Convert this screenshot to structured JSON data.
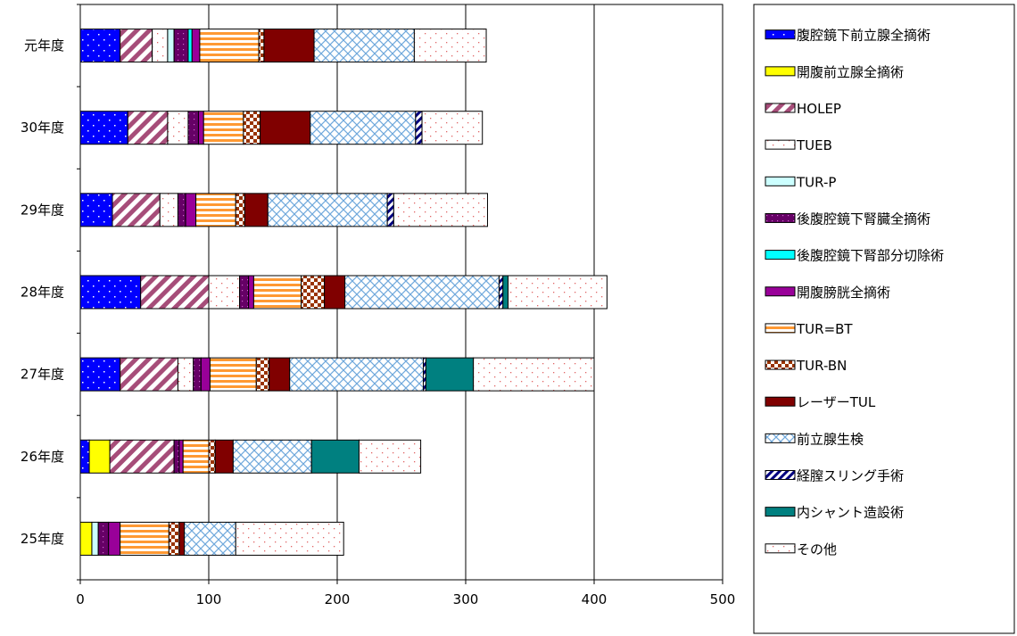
{
  "chart_data": {
    "type": "bar",
    "orientation": "horizontal",
    "stacked": true,
    "title": "",
    "xlabel": "",
    "ylabel": "",
    "xlim": [
      0,
      500
    ],
    "xticks": [
      "0",
      "100",
      "200",
      "300",
      "400",
      "500"
    ],
    "grid": "vertical",
    "legend_position": "right",
    "categories": [
      "元年度",
      "30年度",
      "29年度",
      "28年度",
      "27年度",
      "26年度",
      "25年度"
    ],
    "series": [
      {
        "name": "腹腔鏡下前立腺全摘術",
        "color": "#0000ff",
        "pattern": "dots-blue",
        "values": [
          31,
          37,
          25,
          47,
          31,
          7,
          0
        ]
      },
      {
        "name": "開腹前立腺全摘術",
        "color": "#ffff00",
        "pattern": "solid",
        "values": [
          0,
          0,
          0,
          0,
          0,
          16,
          9
        ]
      },
      {
        "name": "HOLEP",
        "color": "#a64d79",
        "pattern": "diag-stripe",
        "values": [
          25,
          31,
          37,
          53,
          45,
          50,
          0
        ]
      },
      {
        "name": "TUEB",
        "color": "#ffffff",
        "pattern": "dots-pink",
        "values": [
          12,
          16,
          14,
          24,
          12,
          0,
          0
        ]
      },
      {
        "name": "TUR-P",
        "color": "#ccffff",
        "pattern": "solid",
        "values": [
          5,
          0,
          0,
          0,
          0,
          0,
          5
        ]
      },
      {
        "name": "後腹腔鏡下腎臓全摘術",
        "color": "#660066",
        "pattern": "dots-dark",
        "values": [
          11,
          8,
          6,
          7,
          6,
          4,
          8
        ]
      },
      {
        "name": "後腹腔鏡下腎部分切除術",
        "color": "#00ffff",
        "pattern": "solid",
        "values": [
          3,
          0,
          0,
          0,
          0,
          0,
          0
        ]
      },
      {
        "name": "開腹膀胱全摘術",
        "color": "#990099",
        "pattern": "solid",
        "values": [
          6,
          4,
          8,
          4,
          7,
          3,
          9
        ]
      },
      {
        "name": "TUR=BT",
        "color": "#ff9933",
        "pattern": "horiz-stripe",
        "values": [
          46,
          31,
          31,
          37,
          36,
          20,
          38
        ]
      },
      {
        "name": "TUR-BN",
        "color": "#993300",
        "pattern": "checker",
        "values": [
          4,
          13,
          7,
          18,
          10,
          5,
          8
        ]
      },
      {
        "name": "レーザーTUL",
        "color": "#800000",
        "pattern": "solid",
        "values": [
          39,
          39,
          18,
          16,
          16,
          14,
          4
        ]
      },
      {
        "name": "前立腺生検",
        "color": "#99ccff",
        "pattern": "crosshatch",
        "values": [
          78,
          82,
          93,
          120,
          104,
          61,
          40
        ]
      },
      {
        "name": "経膣スリング手術",
        "color": "#000080",
        "pattern": "diag-navy",
        "values": [
          0,
          5,
          5,
          3,
          2,
          0,
          0
        ]
      },
      {
        "name": "内シャント造設術",
        "color": "#008080",
        "pattern": "solid",
        "values": [
          0,
          0,
          0,
          4,
          37,
          37,
          0
        ]
      },
      {
        "name": "その他",
        "color": "#ffffff",
        "pattern": "dots-pink",
        "values": [
          56,
          47,
          73,
          77,
          94,
          48,
          84
        ]
      }
    ]
  }
}
